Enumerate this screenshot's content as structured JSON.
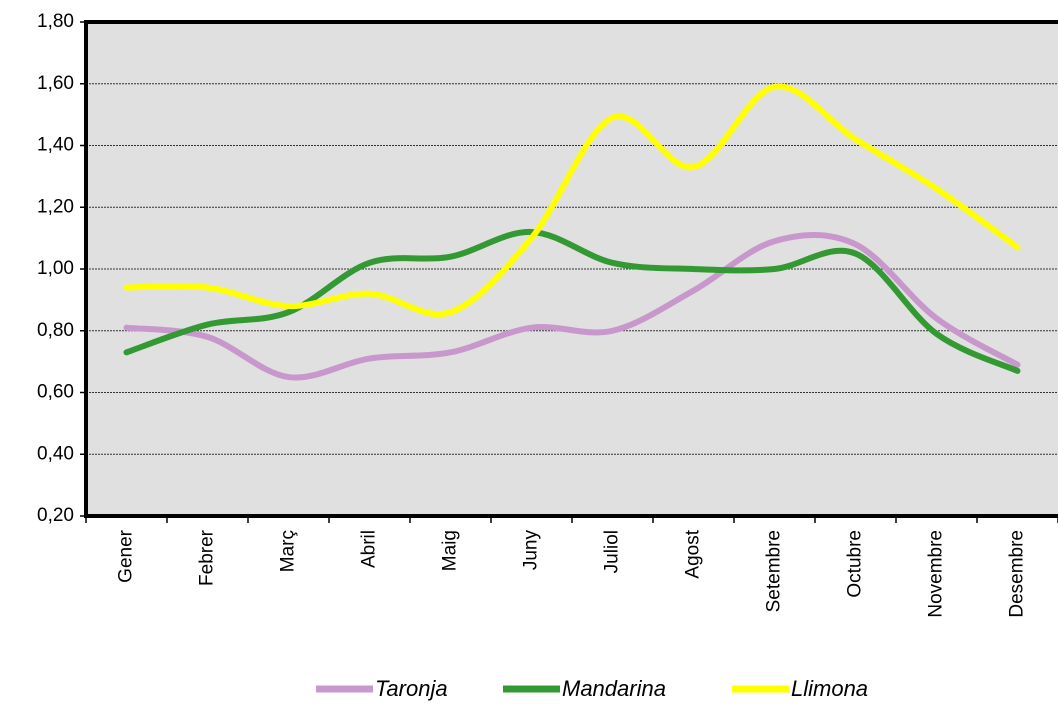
{
  "chart_data": {
    "type": "line",
    "categories": [
      "Gener",
      "Febrer",
      "Març",
      "Abril",
      "Maig",
      "Juny",
      "Juliol",
      "Agost",
      "Setembre",
      "Octubre",
      "Novembre",
      "Desembre"
    ],
    "series": [
      {
        "name": "Taronja",
        "color": "#c898cc",
        "values": [
          0.81,
          0.78,
          0.65,
          0.71,
          0.73,
          0.81,
          0.8,
          0.93,
          1.09,
          1.08,
          0.84,
          0.69
        ]
      },
      {
        "name": "Mandarina",
        "color": "#339933",
        "values": [
          0.73,
          0.82,
          0.86,
          1.02,
          1.04,
          1.12,
          1.02,
          1.0,
          1.0,
          1.05,
          0.79,
          0.67
        ]
      },
      {
        "name": "Llimona",
        "color": "#ffff00",
        "values": [
          0.94,
          0.94,
          0.88,
          0.92,
          0.86,
          1.1,
          1.49,
          1.33,
          1.59,
          1.42,
          1.26,
          1.07
        ]
      }
    ],
    "ylim": [
      0.2,
      1.8
    ],
    "yticks": [
      {
        "value": 0.2,
        "label": "0,20"
      },
      {
        "value": 0.4,
        "label": "0,40"
      },
      {
        "value": 0.6,
        "label": "0,60"
      },
      {
        "value": 0.8,
        "label": "0,80"
      },
      {
        "value": 1.0,
        "label": "1,00"
      },
      {
        "value": 1.2,
        "label": "1,20"
      },
      {
        "value": 1.4,
        "label": "1,40"
      },
      {
        "value": 1.6,
        "label": "1,60"
      },
      {
        "value": 1.8,
        "label": "1,80"
      }
    ],
    "grid": true,
    "smooth": true,
    "legend": "bottom"
  }
}
